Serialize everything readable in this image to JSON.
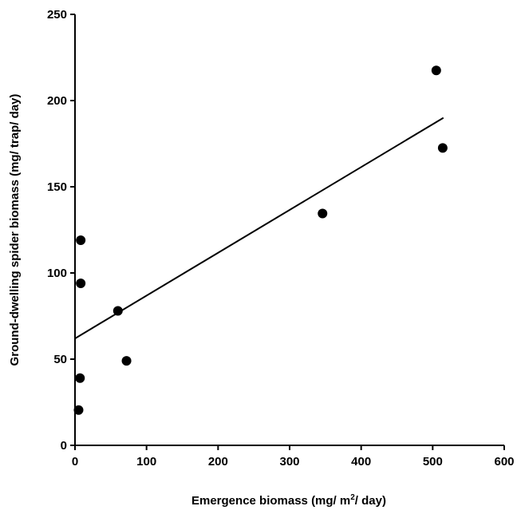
{
  "chart_data": {
    "type": "scatter",
    "title": "",
    "xlabel": "Emergence biomass (mg/ m²/ day)",
    "ylabel": "Ground-dwelling spider biomass (mg/ trap/ day)",
    "xlim": [
      0,
      600
    ],
    "ylim": [
      0,
      250
    ],
    "xticks": [
      0,
      100,
      200,
      300,
      400,
      500,
      600
    ],
    "yticks": [
      0,
      50,
      100,
      150,
      200,
      250
    ],
    "grid": false,
    "series": [
      {
        "points": [
          {
            "x": 5,
            "y": 20.5
          },
          {
            "x": 7,
            "y": 39
          },
          {
            "x": 8,
            "y": 94
          },
          {
            "x": 8,
            "y": 119
          },
          {
            "x": 60,
            "y": 78
          },
          {
            "x": 72,
            "y": 49
          },
          {
            "x": 346,
            "y": 134.5
          },
          {
            "x": 505,
            "y": 217.5
          },
          {
            "x": 514,
            "y": 172.5
          }
        ]
      }
    ],
    "fit_line": {
      "x": [
        0,
        515
      ],
      "y": [
        62,
        190
      ]
    },
    "colors": {
      "marker": "#000000",
      "line": "#000000",
      "axis": "#000000"
    }
  }
}
